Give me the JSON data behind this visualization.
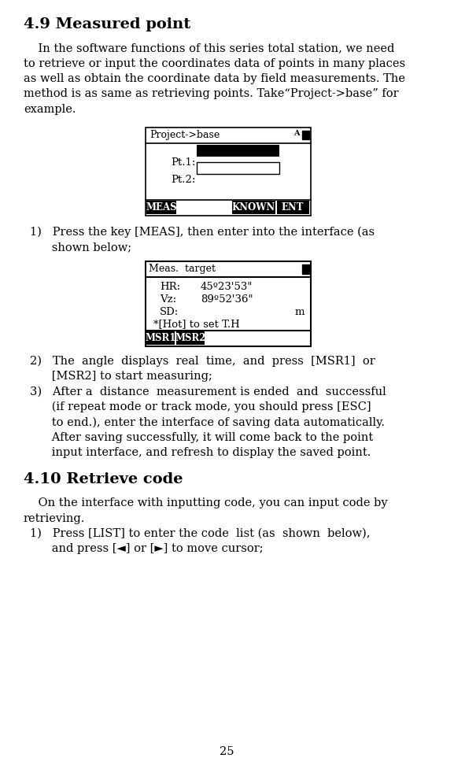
{
  "title_49": "4.9 Measured point",
  "title_410": "4.10 Retrieve code",
  "page_number": "25",
  "bg_color": "#ffffff",
  "text_color": "#000000",
  "box1_title": "Project->base",
  "box1_pt1_label": "Pt.1:",
  "box1_pt2_label": "Pt.2:",
  "box1_btn1": "MEAS",
  "box1_btn2": "KNOWN",
  "box1_btn3": "ENT",
  "box2_title": "Meas.  target",
  "box2_hr": "HR:",
  "box2_hr_val": "45º23'53\"",
  "box2_vz": "Vz:",
  "box2_vz_val": "89º52'36\"",
  "box2_sd": "SD:",
  "box2_sd_unit": "m",
  "box2_hot": "*[Hot] to set T.H",
  "box2_btn1": "MSR1",
  "box2_btn2": "MSR2",
  "body_para1_lines": [
    "    In the software functions of this series total station, we need",
    "to retrieve or input the coordinates data of points in many places",
    "as well as obtain the coordinate data by field measurements. The",
    "method is as same as retrieving points. Take“Project->base” for",
    "example."
  ],
  "list1_line1a": "1)   Press the key [MEAS], then enter into the interface (as",
  "list1_line1b": "      shown below;",
  "list2_line1a": "2)   The  angle  displays  real  time,  and  press  [MSR1]  or",
  "list2_line1b": "      [MSR2] to start measuring;",
  "list3_lines": [
    "3)   After a  distance  measurement is ended  and  successful",
    "      (if repeat mode or track mode, you should press [ESC]",
    "      to end.), enter the interface of saving data automatically.",
    "      After saving successfully, it will come back to the point",
    "      input interface, and refresh to display the saved point."
  ],
  "body_para2_lines": [
    "    On the interface with inputting code, you can input code by",
    "retrieving."
  ],
  "list4_line1a": "1)   Press [LIST] to enter the code  list (as  shown  below),",
  "list4_line1b": "      and press [◄] or [►] to move cursor;"
}
